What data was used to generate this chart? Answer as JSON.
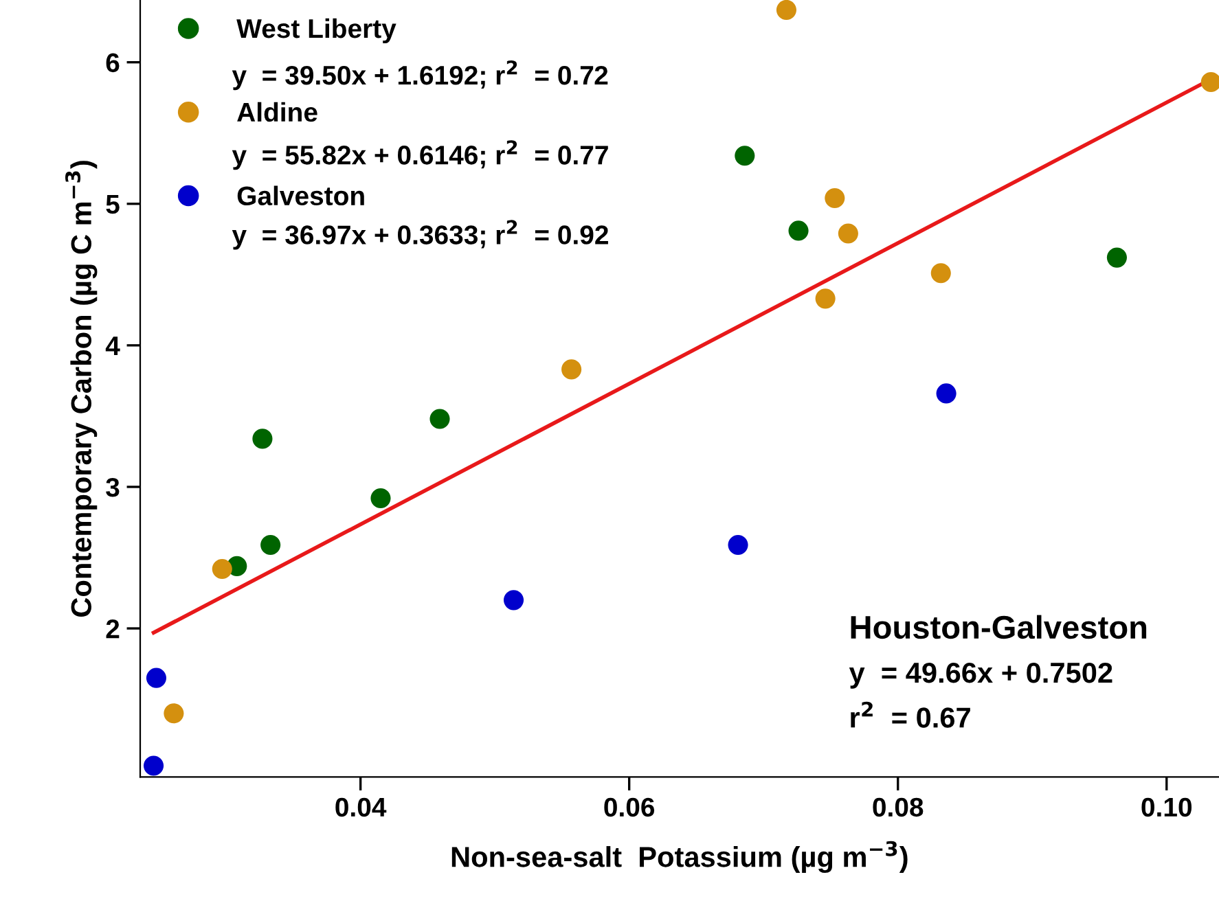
{
  "chart_data": {
    "type": "scatter",
    "xlabel": "Non-sea-salt  Potassium (µg m$^{−3}$)",
    "ylabel": "Contemporary Carbon (µg C m$^{−3}$)",
    "xlim": [
      0.0236,
      0.1039
    ],
    "ylim": [
      0.95,
      6.44
    ],
    "xticks": [
      0.04,
      0.06,
      {
        "value": 0.1,
        "label": "0.10"
      },
      0.08
    ],
    "yticks": [
      2,
      3,
      4,
      5,
      6
    ],
    "grid": false,
    "legend": "top left",
    "marker": "circle",
    "series": [
      {
        "name": "West Liberty",
        "color": "#006400",
        "x": [
          0.0327,
          0.0459,
          0.0415,
          0.0333,
          0.0308,
          0.0686,
          0.0726,
          0.0963
        ],
        "values": [
          3.34,
          3.48,
          2.92,
          2.59,
          2.44,
          5.34,
          4.81,
          4.62
        ]
      },
      {
        "name": "Aldine",
        "color": "#d4900f",
        "x": [
          0.0297,
          0.0261,
          0.0557,
          0.0717,
          0.0753,
          0.0763,
          0.0832,
          0.0746,
          0.1033
        ],
        "values": [
          2.42,
          1.4,
          3.83,
          6.37,
          5.04,
          4.79,
          4.51,
          4.33,
          5.86
        ]
      },
      {
        "name": "Galveston",
        "color": "#0000cc",
        "x": [
          0.0248,
          0.0246,
          0.0514,
          0.0681,
          0.0836
        ],
        "values": [
          1.65,
          1.03,
          2.2,
          2.59,
          3.66
        ]
      },
      {
        "type": "line",
        "color": "#e8191a",
        "x": [
          0.0246,
          0.1033
        ],
        "values": [
          1.97,
          5.88
        ],
        "marker": "none",
        "line_style": "solid"
      }
    ],
    "annotations": [
      "y  = 39.50x + 1.6192; r$^{2}$  = 0.72",
      "y  = 55.82x + 0.6146; r$^{2}$  = 0.77",
      "y  = 36.97x + 0.3633; r$^{2}$  = 0.92",
      "Houston-Galveston",
      "y  = 49.66x + 0.7502",
      "r$^{2}$  = 0.67"
    ]
  }
}
